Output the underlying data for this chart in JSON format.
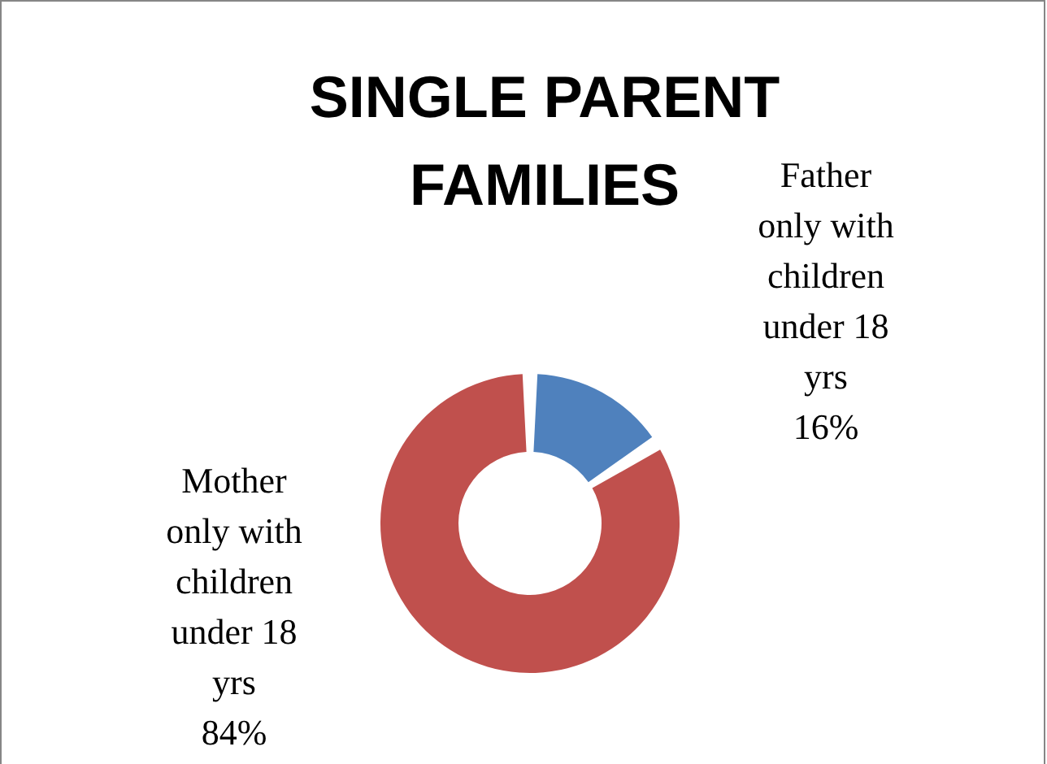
{
  "chart_data": {
    "type": "donut",
    "title": "SINGLE PARENT FAMILIES",
    "categories": [
      "Father only with children under 18 yrs",
      "Mother only with children under 18 yrs"
    ],
    "values": [
      16,
      84
    ],
    "value_labels": [
      "16%",
      "84%"
    ],
    "colors": [
      "#4f81bd",
      "#c0504d"
    ]
  }
}
